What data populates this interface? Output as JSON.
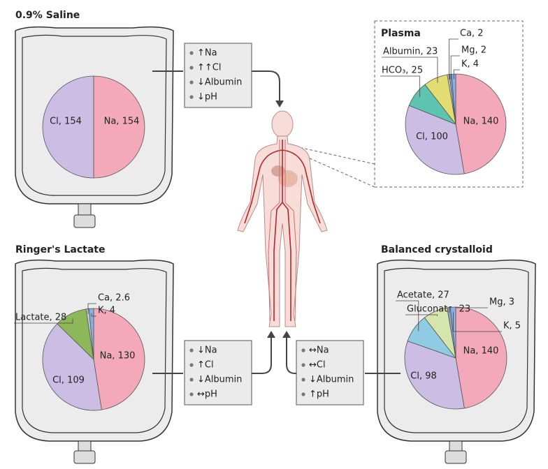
{
  "chart_data": [
    {
      "type": "pie",
      "title": "0.9% Saline",
      "values": [
        154,
        154
      ],
      "value_labels": [
        "Na, 154",
        "Cl, 154"
      ],
      "colors": [
        "#f4a9bb",
        "#cbbde3"
      ]
    },
    {
      "type": "pie",
      "title": "Plasma",
      "values": [
        140,
        100,
        25,
        23,
        2,
        2,
        4
      ],
      "value_labels": [
        "Na, 140",
        "Cl, 100",
        "HCO₃, 25",
        "Albumin, 23",
        "Ca, 2",
        "Mg, 2",
        "K, 4"
      ],
      "colors": [
        "#f4a9bb",
        "#cbbde3",
        "#5dc4b0",
        "#e2dd72",
        "#c7c7c7",
        "#8aa0c8",
        "#7fb4e3"
      ]
    },
    {
      "type": "pie",
      "title": "Ringer's Lactate",
      "values": [
        130,
        109,
        28,
        2.6,
        4
      ],
      "value_labels": [
        "Na, 130",
        "Cl, 109",
        "Lactate, 28",
        "Ca, 2.6",
        "K, 4"
      ],
      "colors": [
        "#f4a9bb",
        "#cbbde3",
        "#8db85a",
        "#c7c7c7",
        "#7fb4e3"
      ]
    },
    {
      "type": "pie",
      "title": "Balanced crystalloid",
      "values": [
        140,
        98,
        27,
        23,
        3,
        5
      ],
      "value_labels": [
        "Na, 140",
        "Cl, 98",
        "Acetate, 27",
        "Gluconate, 23",
        "Mg, 3",
        "K, 5"
      ],
      "colors": [
        "#f4a9bb",
        "#cbbde3",
        "#8fcbe2",
        "#d6e5ab",
        "#8aa0c8",
        "#7fb4e3"
      ]
    }
  ],
  "effects": [
    {
      "lines": [
        "↑Na",
        "↑↑Cl",
        "↓Albumin",
        "↓pH"
      ]
    },
    {
      "lines": [
        "↓Na",
        "↑Cl",
        "↓Albumin",
        "↔pH"
      ]
    },
    {
      "lines": [
        "↔Na",
        "↔Cl",
        "↓Albumin",
        "↑pH"
      ]
    }
  ]
}
